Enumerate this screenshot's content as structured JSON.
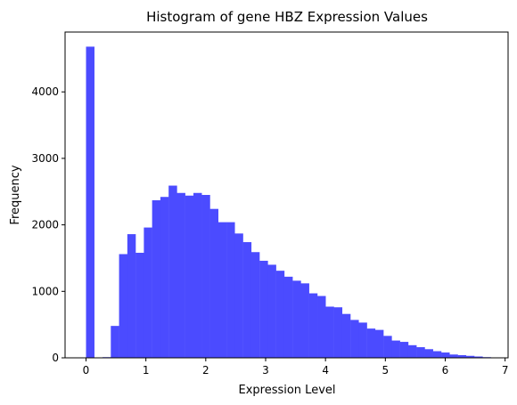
{
  "chart_data": {
    "type": "bar",
    "title": "Histogram of gene HBZ Expression Values",
    "xlabel": "Expression Level",
    "ylabel": "Frequency",
    "xlim": [
      -0.35,
      7.05
    ],
    "ylim": [
      0,
      4900
    ],
    "xticks": [
      0,
      1,
      2,
      3,
      4,
      5,
      6,
      7
    ],
    "yticks": [
      0,
      1000,
      2000,
      3000,
      4000
    ],
    "grid": false,
    "legend": "none",
    "bar_color": "#4b4bff",
    "bins": {
      "start": 0.0,
      "width": 0.138
    },
    "values": [
      4680,
      0,
      10,
      480,
      1560,
      1860,
      1580,
      1960,
      2370,
      2420,
      2590,
      2480,
      2440,
      2480,
      2450,
      2240,
      2040,
      2040,
      1870,
      1740,
      1590,
      1460,
      1400,
      1310,
      1220,
      1160,
      1120,
      970,
      930,
      770,
      760,
      660,
      570,
      530,
      440,
      420,
      330,
      260,
      240,
      190,
      160,
      130,
      100,
      80,
      50,
      40,
      30,
      20,
      10,
      5
    ]
  }
}
